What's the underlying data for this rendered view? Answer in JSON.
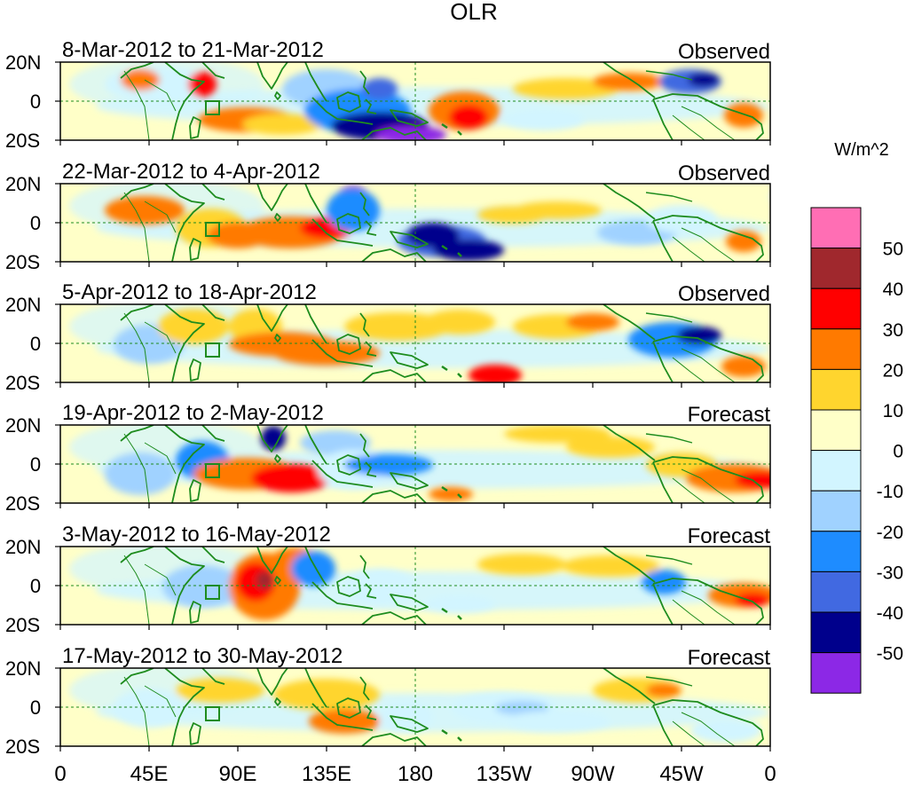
{
  "title": "OLR",
  "colorbar": {
    "units": "W/m^2",
    "labels": [
      "50",
      "40",
      "30",
      "20",
      "10",
      "0",
      "-10",
      "-20",
      "-30",
      "-40",
      "-50"
    ],
    "colors": [
      "#ff6eb4",
      "#a0282d",
      "#ff0000",
      "#ff7a00",
      "#ffd52e",
      "#ffffc8",
      "#d2f5ff",
      "#a0d2ff",
      "#1e8cff",
      "#4169e1",
      "#00008c",
      "#8c28e6"
    ]
  },
  "axes": {
    "y_ticks": [
      "20N",
      "0",
      "20S"
    ],
    "x_ticks": [
      "0",
      "45E",
      "90E",
      "135E",
      "180",
      "135W",
      "90W",
      "45W",
      "0"
    ]
  },
  "panels": [
    {
      "period": "8-Mar-2012 to 21-Mar-2012",
      "type": "Observed"
    },
    {
      "period": "22-Mar-2012 to 4-Apr-2012",
      "type": "Observed"
    },
    {
      "period": "5-Apr-2012 to 18-Apr-2012",
      "type": "Observed"
    },
    {
      "period": "19-Apr-2012 to 2-May-2012",
      "type": "Forecast"
    },
    {
      "period": "3-May-2012 to 16-May-2012",
      "type": "Forecast"
    },
    {
      "period": "17-May-2012 to 30-May-2012",
      "type": "Forecast"
    }
  ],
  "map_colors": {
    "coast": "#1e8c1e",
    "frame": "#000000"
  }
}
